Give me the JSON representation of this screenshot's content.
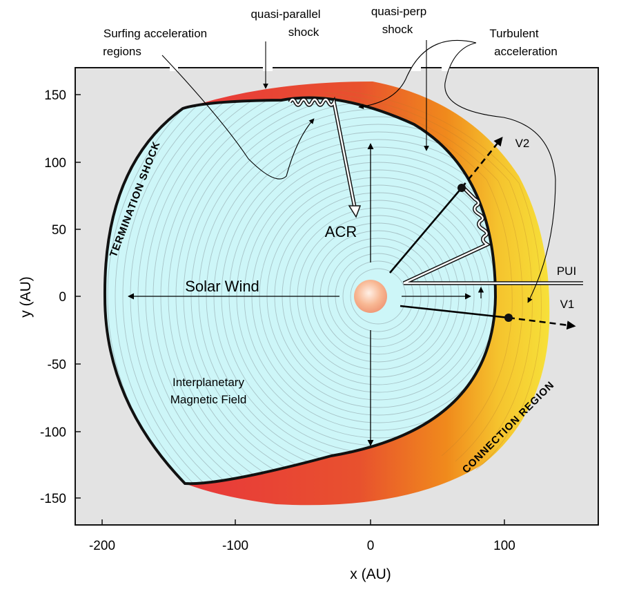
{
  "colors": {
    "frame_bg": "#e3e3e3",
    "wind_region": "#cdf6f8",
    "shock_line": "#111111",
    "grad_red": "#e83a3a",
    "grad_orange": "#f08a1c",
    "grad_yellow": "#f7e23a",
    "sun": "#f6b08e"
  },
  "axes": {
    "x_title": "x  (AU)",
    "y_title": "y  (AU)",
    "x_ticks": [
      "-200",
      "-100",
      "0",
      "100"
    ],
    "y_ticks": [
      "150",
      "100",
      "50",
      "0",
      "-50",
      "-100",
      "-150"
    ]
  },
  "labels": {
    "surfing": [
      "Surfing acceleration",
      "regions"
    ],
    "quasi_parallel": [
      "quasi-parallel",
      "shock"
    ],
    "quasi_perp": [
      "quasi-perp",
      "shock"
    ],
    "turbulent": [
      "Turbulent",
      "acceleration"
    ],
    "termination_shock": "TERMINATION SHOCK",
    "connection_region": "CONNECTION REGION",
    "acr": "ACR",
    "solar_wind": "Solar Wind",
    "pui": "PUI",
    "v1": "V1",
    "v2": "V2",
    "imf": [
      "Interplanetary",
      "Magnetic Field"
    ]
  }
}
